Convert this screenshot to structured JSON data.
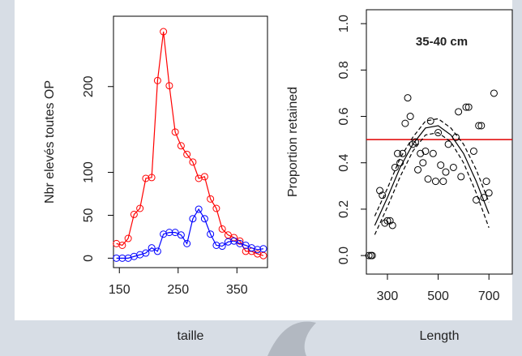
{
  "chart_data": [
    {
      "type": "line",
      "xlabel": "taille",
      "ylabel": "Nbr elevés toutes OP",
      "x": [
        145,
        155,
        165,
        175,
        185,
        195,
        205,
        215,
        225,
        235,
        245,
        255,
        265,
        275,
        285,
        295,
        305,
        315,
        325,
        335,
        345,
        355,
        365,
        375,
        385,
        395
      ],
      "xlim": [
        140,
        402
      ],
      "xticks": [
        150,
        250,
        350
      ],
      "ylim": [
        -11,
        282
      ],
      "yticks": [
        0,
        50,
        100,
        200
      ],
      "series": [
        {
          "color": "#ff0000",
          "values": [
            17,
            15,
            23,
            51,
            58,
            93,
            94,
            207,
            264,
            201,
            147,
            131,
            121,
            112,
            93,
            95,
            69,
            58,
            34,
            27,
            24,
            20,
            8,
            8,
            5,
            3
          ]
        },
        {
          "color": "#0000ff",
          "values": [
            0,
            0,
            0,
            2,
            4,
            6,
            12,
            8,
            28,
            30,
            30,
            27,
            17,
            46,
            57,
            46,
            28,
            15,
            14,
            19,
            20,
            17,
            15,
            12,
            10,
            11
          ]
        }
      ]
    },
    {
      "type": "scatter",
      "xlabel": "Length",
      "ylabel": "Proportion retained",
      "annotation": "35-40 cm",
      "xlim": [
        217,
        792
      ],
      "xticks": [
        300,
        500,
        700
      ],
      "ylim": [
        -0.08,
        1.06
      ],
      "yticks": [
        {
          "value": 0,
          "label": "0.0"
        },
        0.2,
        0.4,
        0.6,
        0.8,
        {
          "value": 1,
          "label": "1.0"
        }
      ],
      "hline": {
        "value": 0.5,
        "color": "#e00000"
      },
      "series": [
        {
          "type": "scatter",
          "color": "#000000",
          "x": [
            227,
            235,
            240,
            270,
            280,
            290,
            300,
            310,
            320,
            330,
            340,
            350,
            360,
            370,
            380,
            390,
            400,
            410,
            420,
            430,
            440,
            450,
            460,
            470,
            480,
            490,
            500,
            510,
            520,
            530,
            540,
            560,
            570,
            580,
            590,
            610,
            620,
            640,
            650,
            660,
            670,
            680,
            690,
            700,
            720
          ],
          "values": [
            0,
            0,
            0,
            0.28,
            0.26,
            0.14,
            0.15,
            0.15,
            0.13,
            0.38,
            0.44,
            0.4,
            0.44,
            0.57,
            0.68,
            0.6,
            0.48,
            0.49,
            0.37,
            0.44,
            0.4,
            0.45,
            0.33,
            0.58,
            0.44,
            0.32,
            0.53,
            0.39,
            0.32,
            0.36,
            0.48,
            0.38,
            0.51,
            0.62,
            0.34,
            0.64,
            0.64,
            0.45,
            0.24,
            0.56,
            0.56,
            0.25,
            0.32,
            0.27,
            0.7
          ]
        },
        {
          "type": "line",
          "color": "#000000",
          "x": [
            250,
            300,
            350,
            400,
            450,
            500,
            550,
            600,
            650,
            700
          ],
          "values": [
            0.13,
            0.25,
            0.38,
            0.48,
            0.55,
            0.56,
            0.52,
            0.44,
            0.32,
            0.18
          ]
        },
        {
          "type": "line",
          "dash": true,
          "color": "#000000",
          "x": [
            250,
            300,
            350,
            400,
            450,
            500,
            550,
            600,
            650,
            700
          ],
          "values": [
            0.09,
            0.21,
            0.34,
            0.45,
            0.52,
            0.53,
            0.49,
            0.4,
            0.27,
            0.12
          ]
        },
        {
          "type": "line",
          "dash": true,
          "color": "#000000",
          "x": [
            250,
            300,
            350,
            400,
            450,
            500,
            550,
            600,
            650,
            700
          ],
          "values": [
            0.17,
            0.29,
            0.42,
            0.51,
            0.58,
            0.59,
            0.55,
            0.48,
            0.37,
            0.23
          ]
        }
      ]
    }
  ]
}
